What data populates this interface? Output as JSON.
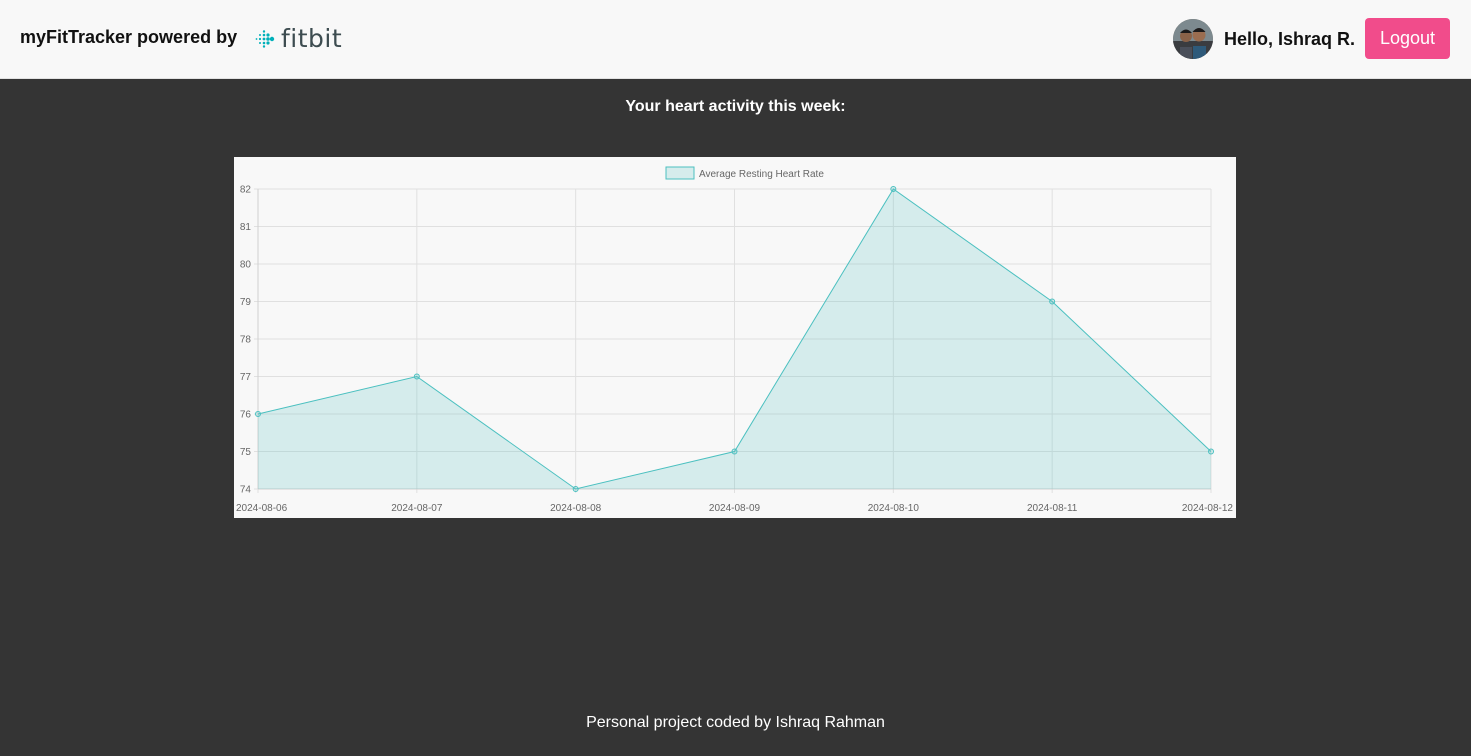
{
  "header": {
    "brand": "myFitTracker powered by",
    "logo_text": "fitbit",
    "greeting": "Hello, Ishraq R.",
    "logout_label": "Logout"
  },
  "main": {
    "title": "Your heart activity this week:"
  },
  "footer": {
    "text": "Personal project coded by Ishraq Rahman"
  },
  "colors": {
    "accent": "#f14c8b",
    "series_line": "#4bc0c0",
    "series_fill": "rgba(75,192,192,0.2)"
  },
  "chart_data": {
    "type": "area",
    "x": [
      "2024-08-06",
      "2024-08-07",
      "2024-08-08",
      "2024-08-09",
      "2024-08-10",
      "2024-08-11",
      "2024-08-12"
    ],
    "series": [
      {
        "name": "Average Resting Heart Rate",
        "values": [
          76,
          77,
          74,
          75,
          82,
          79,
          75
        ]
      }
    ],
    "ylim": [
      74,
      82
    ],
    "yticks": [
      74,
      75,
      76,
      77,
      78,
      79,
      80,
      81,
      82
    ],
    "grid": true,
    "legend": "top-center"
  }
}
